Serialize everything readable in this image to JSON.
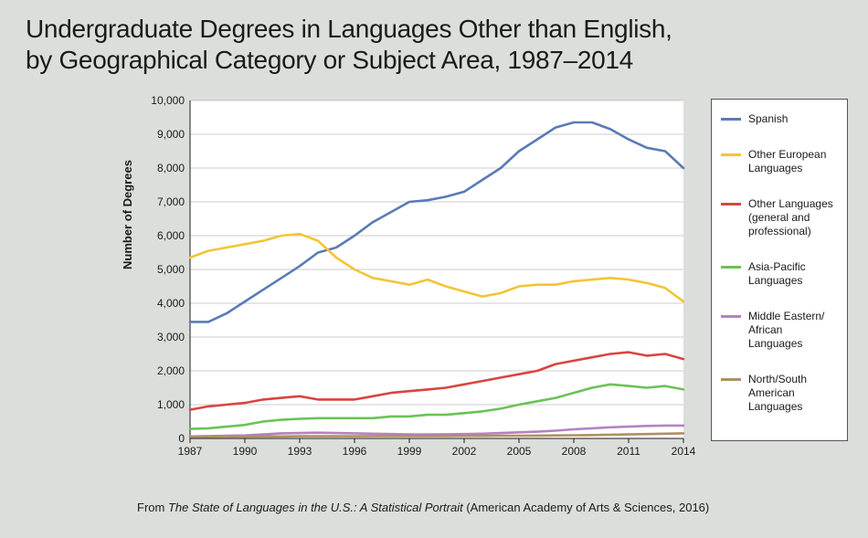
{
  "title_line1": "Undergraduate Degrees in Languages Other than English,",
  "title_line2": "by Geographical Category or Subject Area, 1987–2014",
  "title_fontsize": 28,
  "title_weight": 300,
  "background_color": "#dcdedc",
  "caption_prefix": "From ",
  "caption_italic": "The State of Languages in the U.S.: A Statistical Portrait",
  "caption_suffix": " (American Academy of Arts & Sciences, 2016)",
  "chart": {
    "type": "line",
    "plot_bg": "#ffffff",
    "grid_color": "#9a9a9a",
    "grid_width": 0.6,
    "axis_color": "#1a1a1a",
    "tick_fontsize": 12,
    "ylabel": "Number of Degrees",
    "ylabel_fontsize": 13,
    "ylabel_weight": 700,
    "line_width": 2.6,
    "x": {
      "min": 1987,
      "max": 2014,
      "ticks": [
        1987,
        1990,
        1993,
        1996,
        1999,
        2002,
        2005,
        2008,
        2011,
        2014
      ]
    },
    "y": {
      "min": 0,
      "max": 10000,
      "ticks": [
        0,
        1000,
        2000,
        3000,
        4000,
        5000,
        6000,
        7000,
        8000,
        9000,
        10000
      ],
      "tick_labels": [
        "0",
        "1,000",
        "2,000",
        "3,000",
        "4,000",
        "5,000",
        "6,000",
        "7,000",
        "8,000",
        "9,000",
        "10,000"
      ]
    },
    "series": [
      {
        "name": "Spanish",
        "color": "#5a7bb5",
        "values": [
          3450,
          3450,
          3700,
          4050,
          4400,
          4750,
          5100,
          5500,
          5650,
          6000,
          6400,
          6700,
          7000,
          7050,
          7150,
          7300,
          7650,
          8000,
          8500,
          8850,
          9200,
          9350,
          9350,
          9150,
          8850,
          8600,
          8500,
          8000
        ]
      },
      {
        "name": "Other European Languages",
        "color": "#f2c536",
        "values": [
          5350,
          5550,
          5650,
          5750,
          5850,
          6000,
          6050,
          5850,
          5350,
          5000,
          4750,
          4650,
          4550,
          4700,
          4500,
          4350,
          4200,
          4300,
          4500,
          4550,
          4550,
          4650,
          4700,
          4750,
          4700,
          4600,
          4450,
          4050
        ]
      },
      {
        "name": "Other Languages (general and professional)",
        "color": "#d9453e",
        "values": [
          850,
          950,
          1000,
          1050,
          1150,
          1200,
          1250,
          1150,
          1150,
          1150,
          1250,
          1350,
          1400,
          1450,
          1500,
          1600,
          1700,
          1800,
          1900,
          2000,
          2200,
          2300,
          2400,
          2500,
          2550,
          2450,
          2500,
          2350
        ]
      },
      {
        "name": "Asia-Pacific Languages",
        "color": "#6bc258",
        "values": [
          280,
          300,
          350,
          400,
          500,
          550,
          580,
          600,
          600,
          600,
          600,
          650,
          650,
          700,
          700,
          750,
          800,
          880,
          1000,
          1100,
          1200,
          1350,
          1500,
          1600,
          1550,
          1500,
          1550,
          1450
        ]
      },
      {
        "name": "Middle Eastern/ African Languages",
        "color": "#b582c2",
        "values": [
          60,
          70,
          80,
          90,
          120,
          150,
          160,
          170,
          160,
          150,
          140,
          130,
          120,
          120,
          125,
          130,
          140,
          160,
          180,
          200,
          230,
          270,
          300,
          330,
          350,
          370,
          380,
          380
        ]
      },
      {
        "name": "North/South American Languages",
        "color": "#b09060",
        "values": [
          50,
          50,
          55,
          55,
          60,
          60,
          65,
          65,
          65,
          65,
          70,
          70,
          70,
          70,
          70,
          75,
          75,
          80,
          80,
          85,
          90,
          95,
          100,
          110,
          120,
          130,
          140,
          150
        ]
      }
    ]
  },
  "legend": {
    "border_color": "#555555",
    "bg": "#ffffff",
    "fontsize": 12,
    "swatch_line_width": 3,
    "items": [
      {
        "label": "Spanish",
        "color": "#5a7bb5"
      },
      {
        "label": "Other European Languages",
        "color": "#f2c536"
      },
      {
        "label": "Other Languages (general and professional)",
        "color": "#d9453e"
      },
      {
        "label": "Asia-Pacific Languages",
        "color": "#6bc258"
      },
      {
        "label": "Middle Eastern/ African Languages",
        "color": "#b582c2"
      },
      {
        "label": "North/South American Languages",
        "color": "#b09060"
      }
    ]
  }
}
